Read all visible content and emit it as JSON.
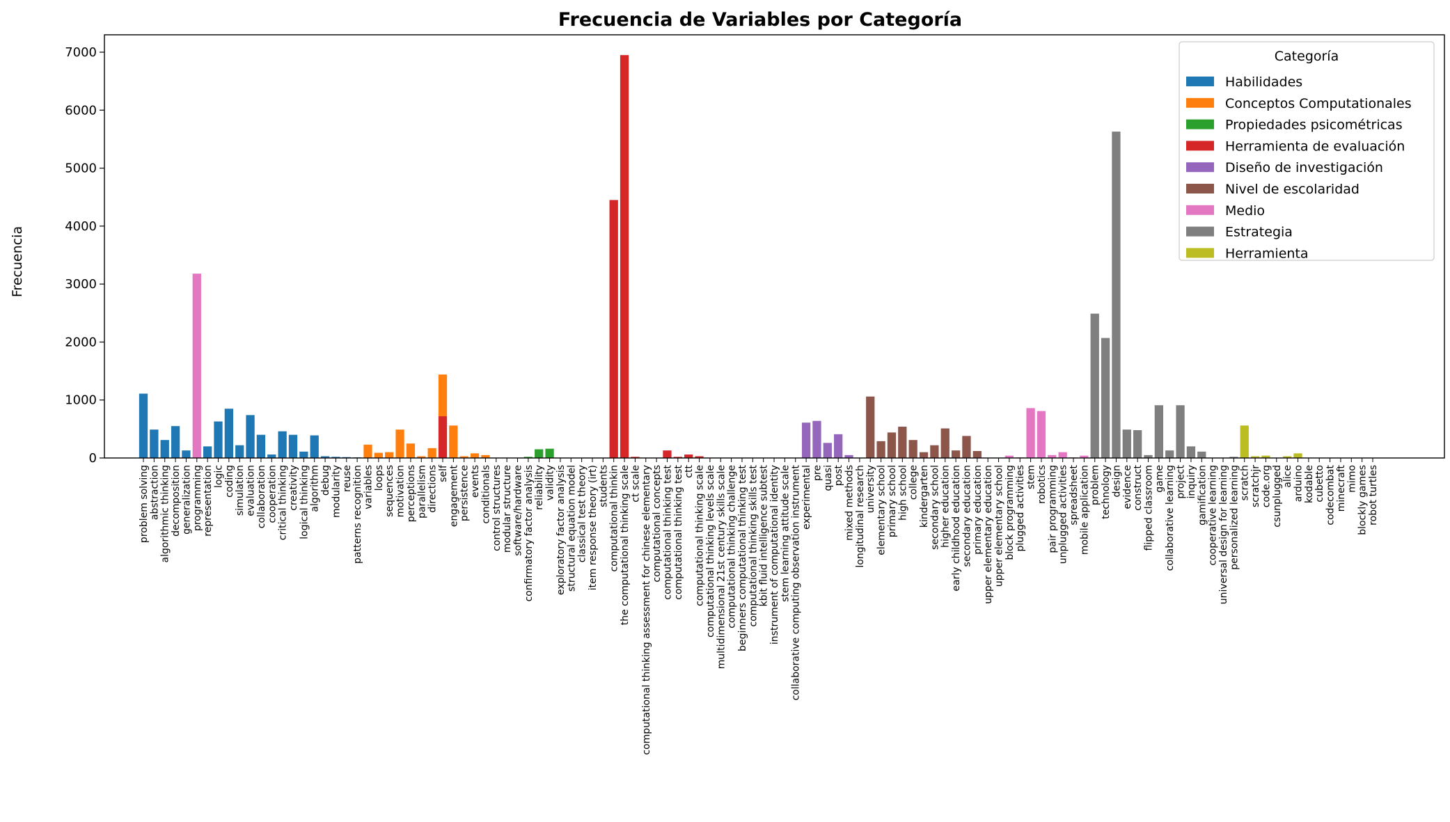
{
  "chart_data": {
    "type": "bar",
    "title": "Frecuencia de Variables por Categoría",
    "xlabel": "",
    "ylabel": "Frecuencia",
    "ylim": [
      0,
      7300
    ],
    "yticks": [
      0,
      1000,
      2000,
      3000,
      4000,
      5000,
      6000,
      7000
    ],
    "grid": false,
    "legend": {
      "title": "Categoría",
      "placement": "top-right",
      "entries": [
        {
          "name": "Habilidades",
          "color": "#1f77b4"
        },
        {
          "name": "Conceptos Computationales",
          "color": "#ff7f0e"
        },
        {
          "name": "Propiedades psicométricas",
          "color": "#2ca02c"
        },
        {
          "name": "Herramienta de evaluación",
          "color": "#d62728"
        },
        {
          "name": "Diseño de investigación",
          "color": "#9467bd"
        },
        {
          "name": "Nivel de escolaridad",
          "color": "#8c564b"
        },
        {
          "name": "Medio",
          "color": "#e377c2"
        },
        {
          "name": "Estrategia",
          "color": "#7f7f7f"
        },
        {
          "name": "Herramienta",
          "color": "#bcbd22"
        }
      ]
    },
    "bars": [
      {
        "label": "problem solving",
        "value": 1110,
        "category": 0
      },
      {
        "label": "abstraction",
        "value": 490,
        "category": 0
      },
      {
        "label": "algorithmic thinking",
        "value": 310,
        "category": 0
      },
      {
        "label": "decomposition",
        "value": 550,
        "category": 0
      },
      {
        "label": "generalization",
        "value": 130,
        "category": 0
      },
      {
        "label": "programming",
        "value": 3180,
        "category": 6
      },
      {
        "label": "representation",
        "value": 200,
        "category": 0
      },
      {
        "label": "logic",
        "value": 630,
        "category": 0
      },
      {
        "label": "coding",
        "value": 850,
        "category": 0
      },
      {
        "label": "simulation",
        "value": 220,
        "category": 0
      },
      {
        "label": "evaluation",
        "value": 740,
        "category": 0
      },
      {
        "label": "collaboration",
        "value": 400,
        "category": 0
      },
      {
        "label": "cooperation",
        "value": 60,
        "category": 0
      },
      {
        "label": "critical thinking",
        "value": 460,
        "category": 0
      },
      {
        "label": "creativity",
        "value": 400,
        "category": 0
      },
      {
        "label": "logical thinking",
        "value": 110,
        "category": 0
      },
      {
        "label": "algorithm",
        "value": 390,
        "category": 0
      },
      {
        "label": "debug",
        "value": 30,
        "category": 0
      },
      {
        "label": "modularity",
        "value": 20,
        "category": 0
      },
      {
        "label": "reuse",
        "value": 15,
        "category": 0
      },
      {
        "label": "patterns recognition",
        "value": 10,
        "category": 0
      },
      {
        "label": "variables",
        "value": 230,
        "category": 1
      },
      {
        "label": "loops",
        "value": 90,
        "category": 1
      },
      {
        "label": "sequences",
        "value": 100,
        "category": 1
      },
      {
        "label": "motivation",
        "value": 490,
        "category": 1
      },
      {
        "label": "perceptions",
        "value": 250,
        "category": 1
      },
      {
        "label": "parallelism",
        "value": 30,
        "category": 1
      },
      {
        "label": "directions",
        "value": 170,
        "category": 1
      },
      {
        "label": "self",
        "value": 720,
        "category": 3,
        "stacked": [
          {
            "value": 720,
            "category": 3
          },
          {
            "value": 720,
            "category": 1
          }
        ]
      },
      {
        "label": "engagement",
        "value": 560,
        "category": 1
      },
      {
        "label": "persistence",
        "value": 30,
        "category": 1
      },
      {
        "label": "events",
        "value": 80,
        "category": 1
      },
      {
        "label": "conditionals",
        "value": 50,
        "category": 1
      },
      {
        "label": "control structures",
        "value": 5,
        "category": 1
      },
      {
        "label": "modular structure",
        "value": 5,
        "category": 1
      },
      {
        "label": "software/hardware",
        "value": 5,
        "category": 1
      },
      {
        "label": "confirmatory factor analysis",
        "value": 20,
        "category": 2
      },
      {
        "label": "reliability",
        "value": 150,
        "category": 2
      },
      {
        "label": "validity",
        "value": 160,
        "category": 2
      },
      {
        "label": "exploratory factor analysis",
        "value": 5,
        "category": 2
      },
      {
        "label": "structural equation model",
        "value": 5,
        "category": 2
      },
      {
        "label": "classical test theory",
        "value": 5,
        "category": 2
      },
      {
        "label": "item response theory (irt)",
        "value": 5,
        "category": 2
      },
      {
        "label": "students",
        "value": 5,
        "category": 3
      },
      {
        "label": "computational thinkin",
        "value": 4450,
        "category": 3
      },
      {
        "label": "the computational thinking scale",
        "value": 6950,
        "category": 3
      },
      {
        "label": "ct scale",
        "value": 20,
        "category": 3
      },
      {
        "label": "computational thinking assessment for chinese elementary",
        "value": 5,
        "category": 3
      },
      {
        "label": "computational concepts",
        "value": 5,
        "category": 3
      },
      {
        "label": "computational thinking test",
        "value": 130,
        "category": 3
      },
      {
        "label": "computational thinking test",
        "value": 20,
        "category": 3
      },
      {
        "label": "ctt",
        "value": 60,
        "category": 3
      },
      {
        "label": "computational thinking scale",
        "value": 30,
        "category": 3
      },
      {
        "label": "computational thinking levels scale",
        "value": 5,
        "category": 3
      },
      {
        "label": "multidimensional 21st century skills scale",
        "value": 5,
        "category": 3
      },
      {
        "label": "computational thinking challenge",
        "value": 5,
        "category": 3
      },
      {
        "label": "beginners computational thinking test",
        "value": 5,
        "category": 3
      },
      {
        "label": "computational thinking skills test",
        "value": 5,
        "category": 3
      },
      {
        "label": "kbit fluid intelligence subtest",
        "value": 5,
        "category": 3
      },
      {
        "label": "instrument of computational identity",
        "value": 5,
        "category": 3
      },
      {
        "label": "stem learning attitude scale",
        "value": 5,
        "category": 3
      },
      {
        "label": "collaborative computing observation instrument",
        "value": 5,
        "category": 3
      },
      {
        "label": "experimental",
        "value": 610,
        "category": 4
      },
      {
        "label": "pre",
        "value": 640,
        "category": 4
      },
      {
        "label": "quasi",
        "value": 260,
        "category": 4
      },
      {
        "label": "post",
        "value": 410,
        "category": 4
      },
      {
        "label": "mixed methods",
        "value": 50,
        "category": 4
      },
      {
        "label": "longitudinal research",
        "value": 5,
        "category": 4
      },
      {
        "label": "university",
        "value": 1060,
        "category": 5
      },
      {
        "label": "elementary school",
        "value": 290,
        "category": 5
      },
      {
        "label": "primary school",
        "value": 440,
        "category": 5
      },
      {
        "label": "high school",
        "value": 540,
        "category": 5
      },
      {
        "label": "college",
        "value": 310,
        "category": 5
      },
      {
        "label": "kindergarten",
        "value": 100,
        "category": 5
      },
      {
        "label": "secondary school",
        "value": 220,
        "category": 5
      },
      {
        "label": "higher education",
        "value": 510,
        "category": 5
      },
      {
        "label": "early childhood education",
        "value": 130,
        "category": 5
      },
      {
        "label": "secondary education",
        "value": 380,
        "category": 5
      },
      {
        "label": "primary education",
        "value": 120,
        "category": 5
      },
      {
        "label": "upper elementary education",
        "value": 5,
        "category": 5
      },
      {
        "label": "upper elementary school",
        "value": 5,
        "category": 5
      },
      {
        "label": "block programming",
        "value": 40,
        "category": 6
      },
      {
        "label": "plugged activities",
        "value": 10,
        "category": 6
      },
      {
        "label": "stem",
        "value": 860,
        "category": 6
      },
      {
        "label": "robotics",
        "value": 810,
        "category": 6
      },
      {
        "label": "pair programming",
        "value": 50,
        "category": 6
      },
      {
        "label": "unplugged activities",
        "value": 100,
        "category": 6
      },
      {
        "label": "spreadsheet",
        "value": 10,
        "category": 6
      },
      {
        "label": "mobile application",
        "value": 40,
        "category": 6
      },
      {
        "label": "problem",
        "value": 2490,
        "category": 7
      },
      {
        "label": "technology",
        "value": 2070,
        "category": 7
      },
      {
        "label": "design",
        "value": 5630,
        "category": 7
      },
      {
        "label": "evidence",
        "value": 490,
        "category": 7
      },
      {
        "label": "construct",
        "value": 480,
        "category": 7
      },
      {
        "label": "flipped classroom",
        "value": 50,
        "category": 7
      },
      {
        "label": "game",
        "value": 910,
        "category": 7
      },
      {
        "label": "collaborative learning",
        "value": 130,
        "category": 7
      },
      {
        "label": "project",
        "value": 910,
        "category": 7
      },
      {
        "label": "inquiry",
        "value": 200,
        "category": 7
      },
      {
        "label": "gamification",
        "value": 110,
        "category": 7
      },
      {
        "label": "cooperative learning",
        "value": 5,
        "category": 7
      },
      {
        "label": "universal design for learning",
        "value": 5,
        "category": 7
      },
      {
        "label": "personalized learning",
        "value": 20,
        "category": 7
      },
      {
        "label": "scratch",
        "value": 560,
        "category": 8
      },
      {
        "label": "scratchjr",
        "value": 30,
        "category": 8
      },
      {
        "label": "code.org",
        "value": 40,
        "category": 8
      },
      {
        "label": "csunplugged",
        "value": 5,
        "category": 8
      },
      {
        "label": "alice",
        "value": 30,
        "category": 8
      },
      {
        "label": "arduino",
        "value": 80,
        "category": 8
      },
      {
        "label": "kodable",
        "value": 5,
        "category": 8
      },
      {
        "label": "cubetto",
        "value": 5,
        "category": 8
      },
      {
        "label": "codecombat",
        "value": 5,
        "category": 8
      },
      {
        "label": "minecraft",
        "value": 5,
        "category": 8
      },
      {
        "label": "mimo",
        "value": 5,
        "category": 8
      },
      {
        "label": "blockly games",
        "value": 5,
        "category": 8
      },
      {
        "label": "robot turtles",
        "value": 5,
        "category": 8
      }
    ]
  }
}
